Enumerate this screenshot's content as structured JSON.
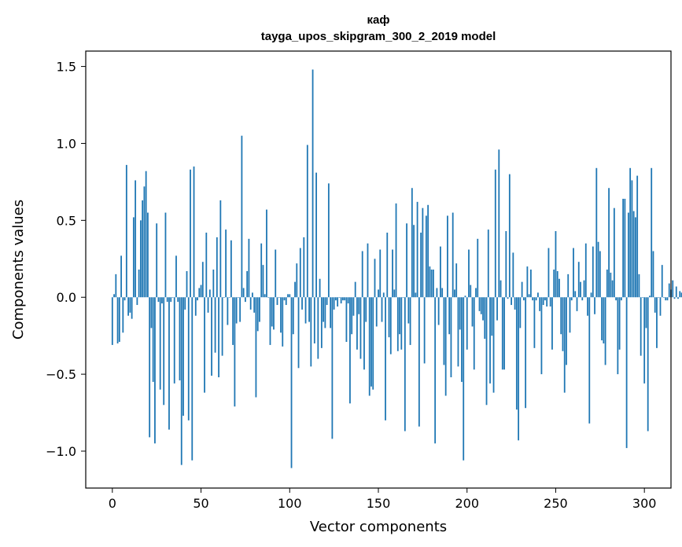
{
  "chart_data": {
    "type": "bar",
    "title": "каф",
    "subtitle": "tayga_upos_skipgram_300_2_2019 model",
    "xlabel": "Vector components",
    "ylabel": "Components values",
    "xlim": [
      -15,
      315
    ],
    "ylim": [
      -1.24,
      1.6
    ],
    "xticks": [
      0,
      50,
      100,
      150,
      200,
      250,
      300
    ],
    "yticks": [
      -1.0,
      -0.5,
      0.0,
      0.5,
      1.0,
      1.5
    ],
    "ytick_labels": [
      "−1.0",
      "−0.5",
      "0.0",
      "0.5",
      "1.0",
      "1.5"
    ],
    "bar_color": "#1f77b4",
    "values": [
      -0.31,
      0.02,
      0.15,
      -0.3,
      -0.29,
      0.27,
      -0.23,
      -0.02,
      0.86,
      -0.12,
      -0.1,
      -0.14,
      0.52,
      0.76,
      -0.05,
      0.18,
      0.5,
      0.63,
      0.72,
      0.82,
      0.55,
      -0.91,
      -0.2,
      -0.55,
      -0.95,
      0.48,
      -0.03,
      -0.6,
      -0.04,
      -0.7,
      0.55,
      -0.03,
      -0.86,
      -0.03,
      0.0,
      -0.56,
      0.27,
      -0.03,
      -0.54,
      -1.09,
      -0.77,
      -0.08,
      0.17,
      -0.8,
      0.83,
      -1.06,
      0.85,
      -0.12,
      -0.02,
      0.06,
      0.08,
      0.23,
      -0.62,
      0.42,
      -0.1,
      0.05,
      -0.51,
      0.18,
      -0.36,
      0.39,
      -0.52,
      0.63,
      -0.38,
      0.0,
      0.44,
      -0.18,
      0.0,
      0.37,
      -0.31,
      -0.71,
      -0.17,
      0.0,
      -0.16,
      1.05,
      0.06,
      -0.03,
      0.17,
      0.38,
      -0.08,
      0.03,
      -0.1,
      -0.65,
      -0.22,
      -0.16,
      0.35,
      0.21,
      0.02,
      0.57,
      0.0,
      -0.31,
      -0.19,
      -0.21,
      0.31,
      -0.05,
      0.0,
      -0.23,
      -0.32,
      -0.02,
      -0.05,
      0.02,
      0.02,
      -1.11,
      -0.24,
      0.1,
      0.22,
      -0.46,
      0.32,
      -0.08,
      0.39,
      -0.17,
      0.99,
      -0.16,
      -0.45,
      1.48,
      -0.3,
      0.81,
      -0.4,
      0.12,
      -0.33,
      -0.16,
      -0.2,
      -0.05,
      0.74,
      -0.2,
      -0.92,
      -0.08,
      -0.02,
      -0.06,
      0.0,
      -0.04,
      -0.02,
      -0.02,
      -0.29,
      -0.04,
      -0.69,
      -0.24,
      -0.12,
      0.1,
      -0.34,
      -0.11,
      -0.4,
      0.3,
      -0.47,
      -0.16,
      0.35,
      -0.64,
      -0.58,
      -0.6,
      0.25,
      -0.19,
      0.05,
      0.31,
      -0.16,
      0.03,
      -0.8,
      0.42,
      -0.26,
      -0.37,
      0.31,
      0.05,
      0.61,
      -0.35,
      -0.24,
      -0.34,
      0.0,
      -0.87,
      0.48,
      -0.17,
      -0.31,
      0.71,
      0.47,
      0.03,
      0.62,
      -0.84,
      0.42,
      0.58,
      -0.43,
      0.53,
      0.6,
      0.2,
      0.18,
      0.18,
      -0.95,
      0.06,
      -0.18,
      0.33,
      0.06,
      -0.44,
      -0.64,
      0.53,
      -0.24,
      -0.52,
      0.55,
      0.05,
      0.22,
      -0.45,
      -0.21,
      -0.55,
      -1.06,
      0.01,
      -0.34,
      0.31,
      0.08,
      -0.19,
      -0.47,
      0.06,
      0.38,
      -0.09,
      -0.11,
      -0.15,
      -0.27,
      -0.7,
      0.44,
      -0.56,
      -0.25,
      -0.62,
      0.83,
      -0.15,
      0.96,
      0.11,
      -0.47,
      -0.47,
      0.43,
      -0.01,
      0.8,
      -0.05,
      0.29,
      -0.08,
      -0.73,
      -0.93,
      -0.2,
      0.1,
      -0.02,
      -0.72,
      0.2,
      0.02,
      0.18,
      -0.02,
      -0.33,
      -0.02,
      0.03,
      -0.09,
      -0.5,
      -0.05,
      -0.02,
      -0.06,
      0.32,
      -0.06,
      -0.34,
      0.18,
      0.43,
      0.17,
      0.12,
      -0.24,
      -0.35,
      -0.62,
      -0.44,
      0.15,
      -0.23,
      -0.02,
      0.32,
      0.04,
      -0.09,
      0.23,
      0.1,
      -0.02,
      0.11,
      0.35,
      -0.12,
      -0.82,
      0.03,
      0.33,
      -0.11,
      0.84,
      0.36,
      0.3,
      -0.28,
      -0.3,
      -0.44,
      0.18,
      0.71,
      0.16,
      0.11,
      0.58,
      -0.02,
      -0.5,
      -0.34,
      -0.02,
      0.64,
      0.64,
      -0.98,
      0.55,
      0.84,
      0.76,
      0.56,
      0.52,
      0.79,
      0.15,
      -0.38,
      0.0,
      -0.56,
      -0.2,
      -0.87,
      0.01,
      0.84,
      0.3,
      -0.1,
      -0.33,
      0.0,
      -0.12,
      0.21,
      0.0,
      -0.02,
      -0.02,
      0.09,
      0.05,
      0.11,
      -0.01,
      0.07,
      -0.01,
      0.04,
      0.03,
      0.02
    ]
  }
}
